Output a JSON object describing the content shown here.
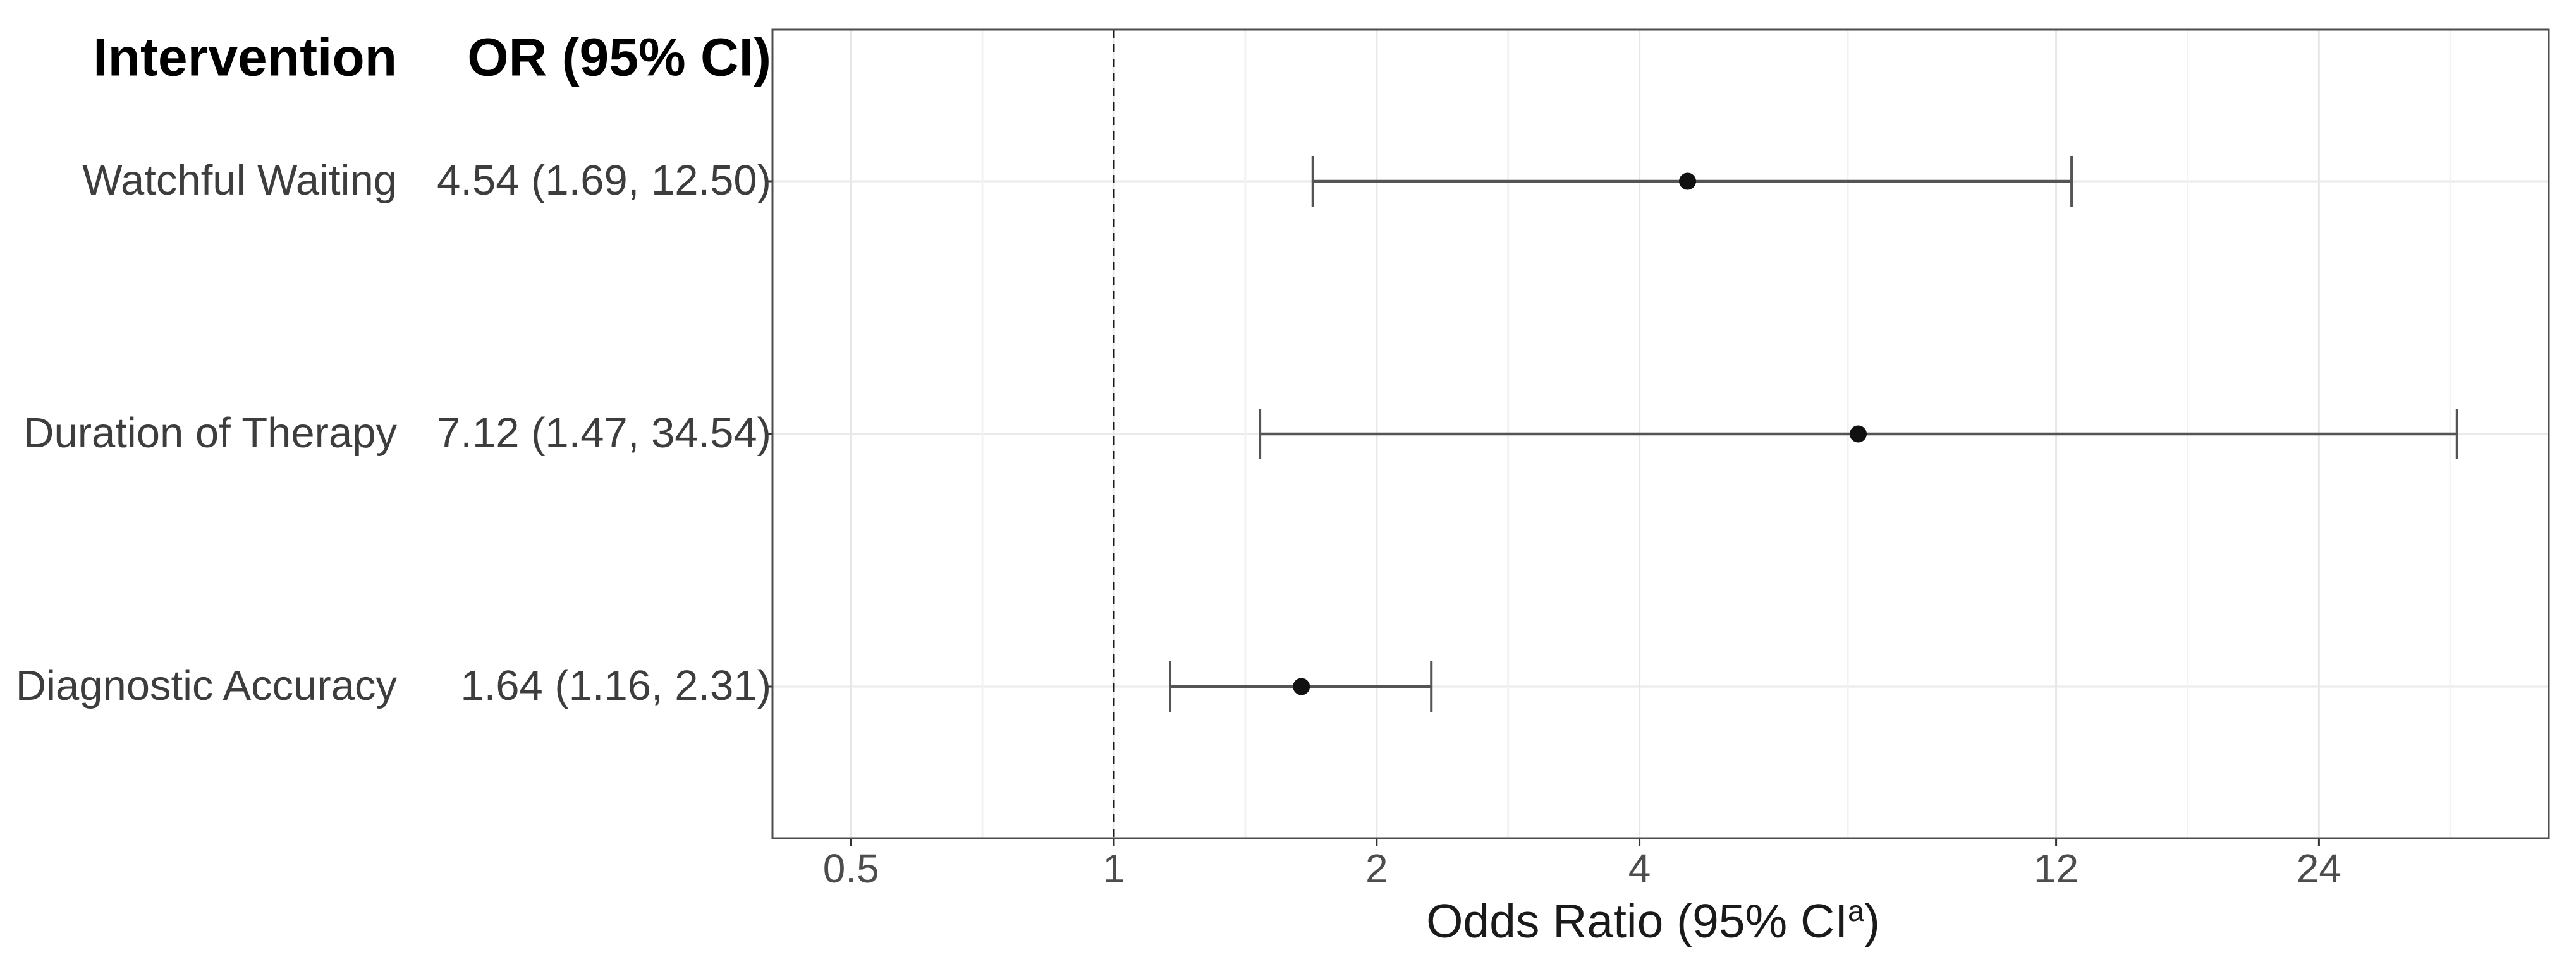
{
  "table": {
    "header_intervention": "Intervention",
    "header_or": "OR (95% CI)"
  },
  "chart_data": {
    "type": "forest",
    "orientation": "horizontal",
    "x_scale": "log2",
    "xlim": [
      0.4065,
      44.0
    ],
    "x_major_ticks": [
      0.5,
      1,
      2,
      4,
      12,
      24
    ],
    "x_tick_labels": [
      "0.5",
      "1",
      "2",
      "4",
      "12",
      "24"
    ],
    "x_minor_gridlines": [
      0.7071,
      1.4142,
      2.8284,
      6.9282,
      16.9706,
      33.9411
    ],
    "reference_line": 1,
    "reference_line_style": "dashed",
    "grid": true,
    "xlabel_prefix": "Odds Ratio (95% CI",
    "xlabel_sup": "a",
    "xlabel_suffix": ")",
    "rows": [
      {
        "label": "Watchful Waiting",
        "or": 4.54,
        "ci_low": 1.69,
        "ci_high": 12.5,
        "or_ci_text": "4.54 (1.69, 12.50)"
      },
      {
        "label": "Duration of Therapy",
        "or": 7.12,
        "ci_low": 1.47,
        "ci_high": 34.54,
        "or_ci_text": "7.12 (1.47, 34.54)"
      },
      {
        "label": "Diagnostic Accuracy",
        "or": 1.64,
        "ci_low": 1.16,
        "ci_high": 2.31,
        "or_ci_text": "1.64 (1.16, 2.31)"
      }
    ]
  },
  "colors": {
    "point": "#111111",
    "interval": "#545454",
    "reference_line": "#1a1a1a",
    "grid_major": "#e7e7e7",
    "grid_minor": "#f2f2f2",
    "row_gridline": "#eaeaea",
    "panel_border": "#4d4d4d",
    "axis_tick": "#333333",
    "header_text": "#000000",
    "label_text": "#3d3d3d",
    "axis_text": "#4d4d4d",
    "background": "#ffffff"
  }
}
